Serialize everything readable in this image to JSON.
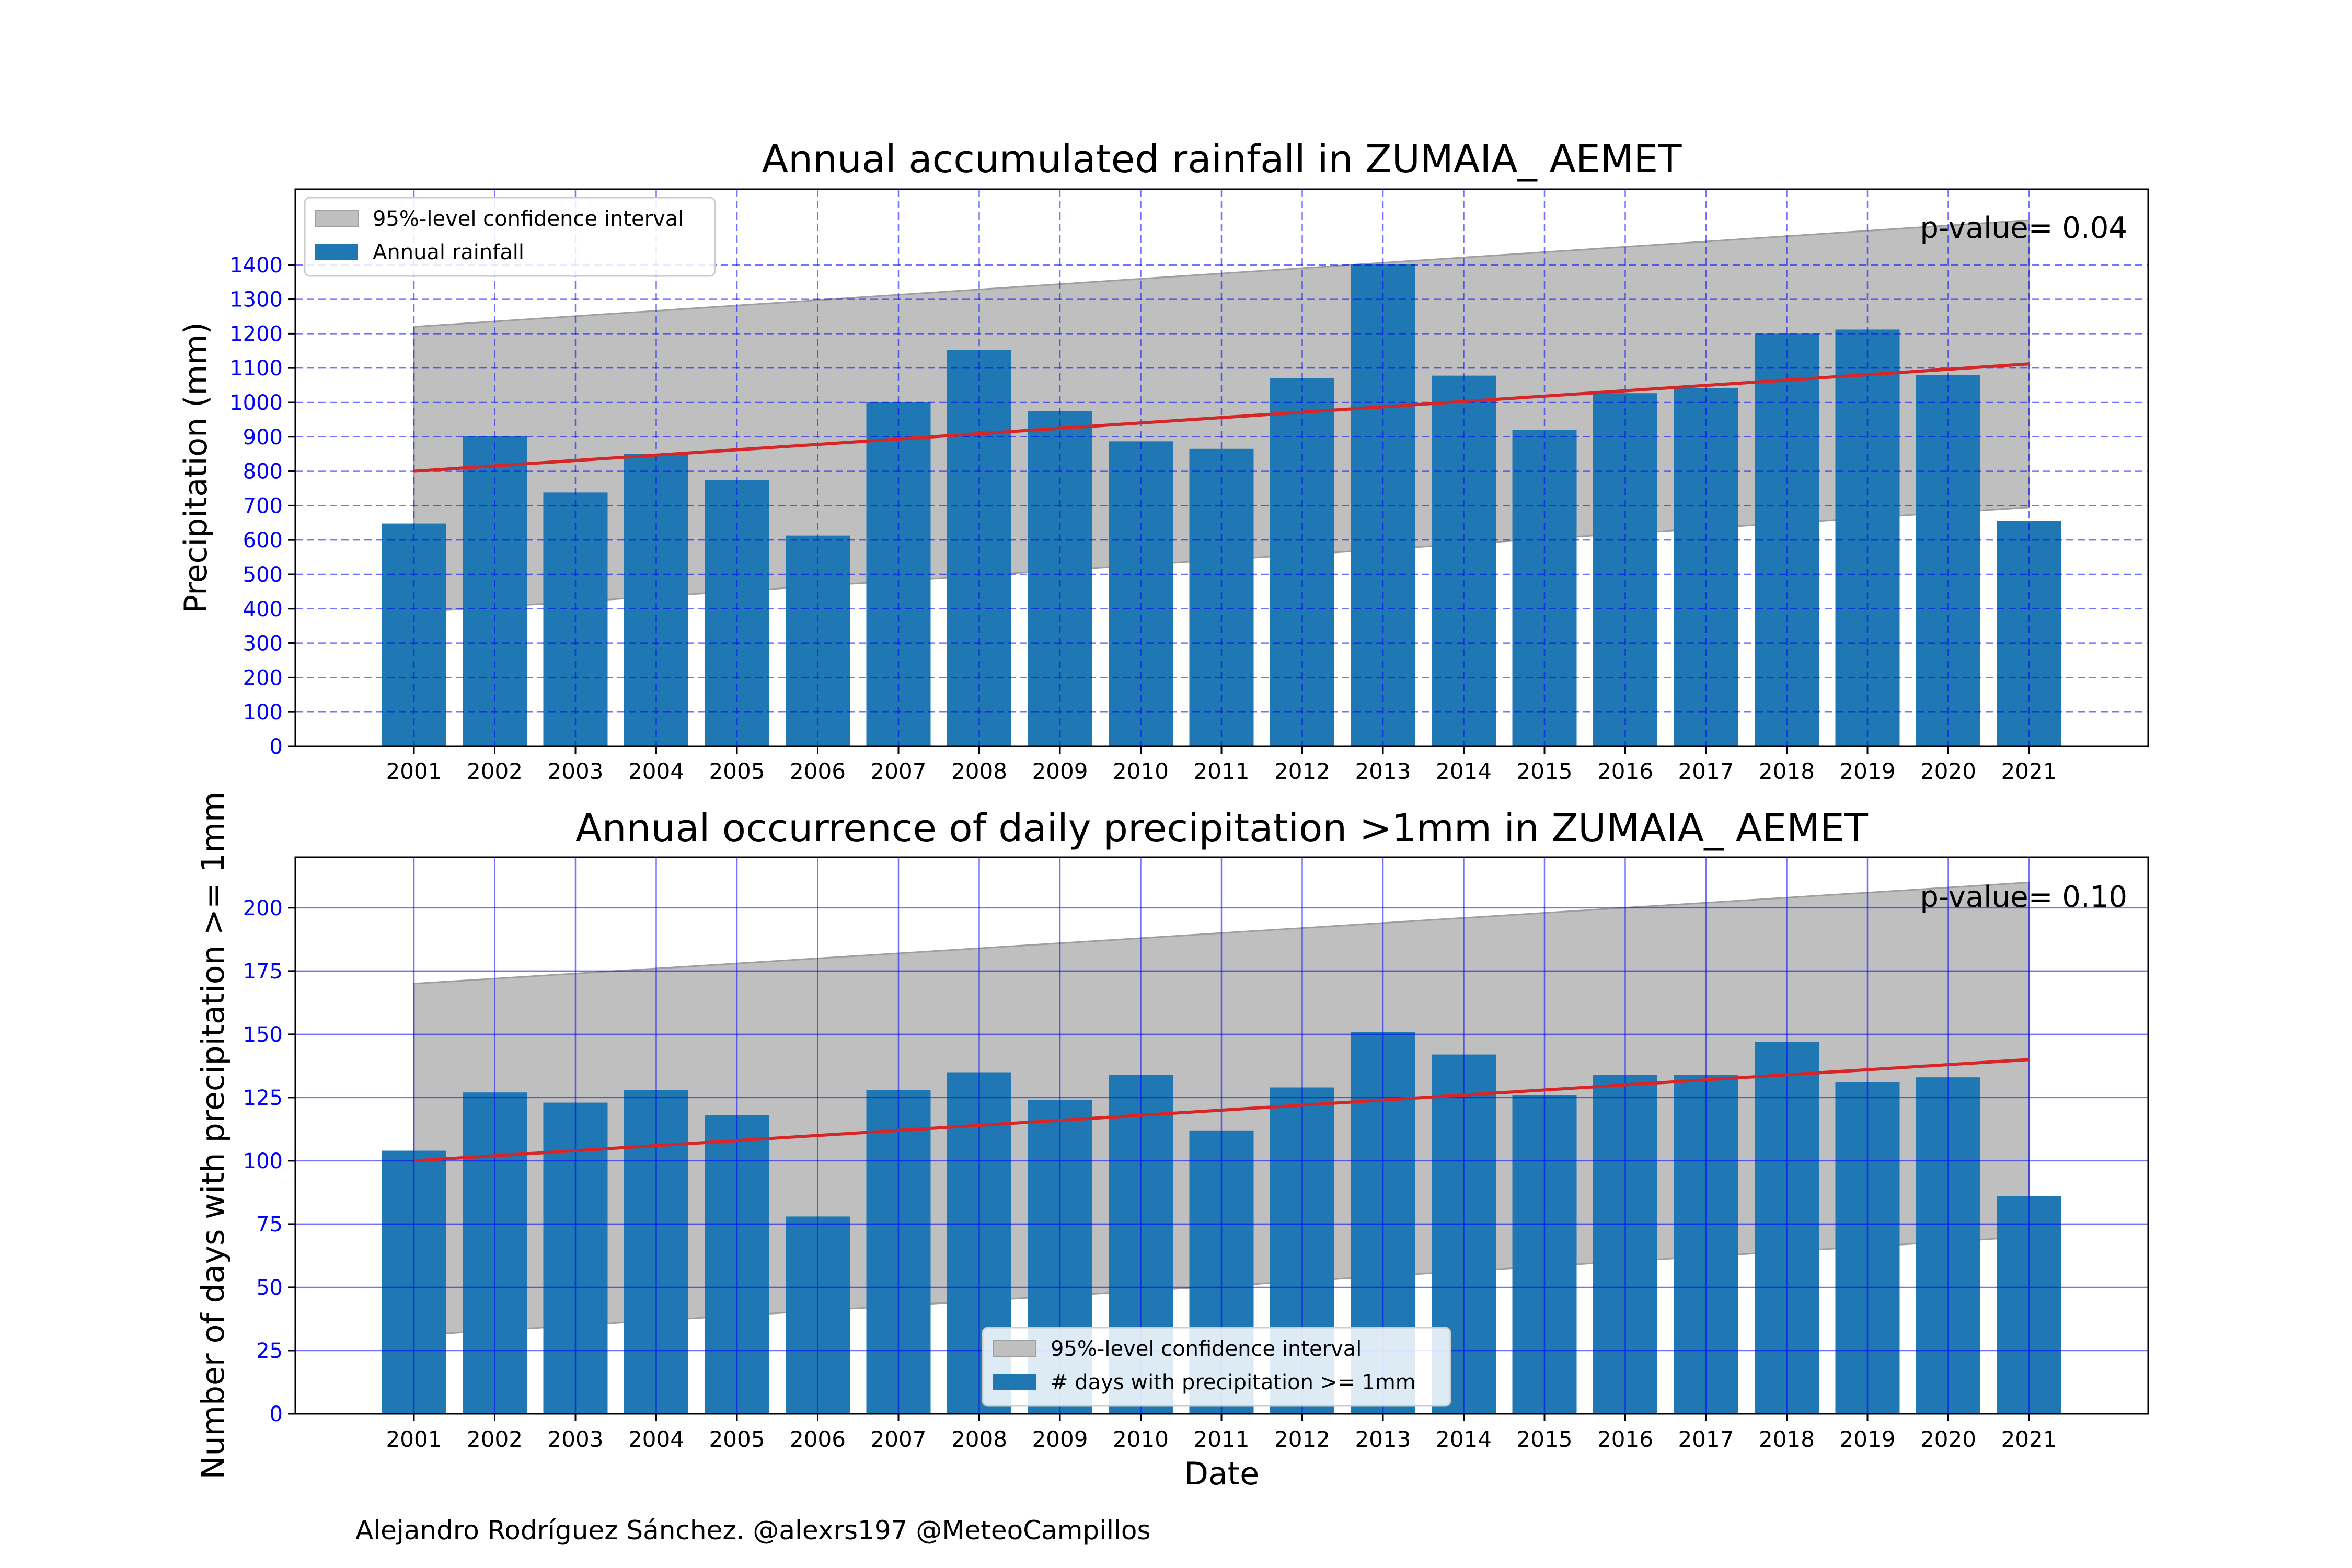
{
  "credit": "Alejandro Rodríguez Sánchez. @alexrs197 @MeteoCampillos",
  "chart_data": [
    {
      "type": "bar",
      "title": "Annual accumulated rainfall in ZUMAIA_ AEMET",
      "ylabel": "Precipitation (mm)",
      "xlabel": "",
      "categories": [
        "2001",
        "2002",
        "2003",
        "2004",
        "2005",
        "2006",
        "2007",
        "2008",
        "2009",
        "2010",
        "2011",
        "2012",
        "2013",
        "2014",
        "2015",
        "2016",
        "2017",
        "2018",
        "2019",
        "2020",
        "2021"
      ],
      "series": [
        {
          "name": "Annual rainfall",
          "color": "#1f77b4",
          "values": [
            648,
            902,
            738,
            851,
            775,
            613,
            1001,
            1153,
            975,
            887,
            865,
            1070,
            1402,
            1078,
            920,
            1027,
            1042,
            1200,
            1212,
            1080,
            655
          ]
        }
      ],
      "trend": {
        "start": [
          2001,
          800
        ],
        "end": [
          2021,
          1112
        ],
        "color": "#d62728"
      },
      "confidence_interval": {
        "name": "95%-level confidence interval",
        "upper_start": 1220,
        "upper_end": 1530,
        "lower_start": 390,
        "lower_end": 695,
        "color": "#bfbfbf"
      },
      "p_value": "p-value= 0.04",
      "ylim": [
        0,
        1400
      ],
      "yticks": [
        0,
        100,
        200,
        300,
        400,
        500,
        600,
        700,
        800,
        900,
        1000,
        1100,
        1200,
        1300,
        1400
      ],
      "grid": "dashed",
      "legend": {
        "position": "top-left",
        "entries": [
          "95%-level confidence interval",
          "Annual rainfall"
        ]
      }
    },
    {
      "type": "bar",
      "title": "Annual occurrence of daily precipitation >1mm in ZUMAIA_ AEMET",
      "ylabel": "Number of days with precipitation >= 1mm",
      "xlabel": "Date",
      "categories": [
        "2001",
        "2002",
        "2003",
        "2004",
        "2005",
        "2006",
        "2007",
        "2008",
        "2009",
        "2010",
        "2011",
        "2012",
        "2013",
        "2014",
        "2015",
        "2016",
        "2017",
        "2018",
        "2019",
        "2020",
        "2021"
      ],
      "series": [
        {
          "name": "# days with precipitation >= 1mm",
          "color": "#1f77b4",
          "values": [
            104,
            127,
            123,
            128,
            118,
            78,
            128,
            135,
            124,
            134,
            112,
            129,
            151,
            142,
            126,
            134,
            134,
            147,
            131,
            133,
            86
          ]
        }
      ],
      "trend": {
        "start": [
          2001,
          100
        ],
        "end": [
          2021,
          140
        ],
        "color": "#d62728"
      },
      "confidence_interval": {
        "name": "95%-level confidence interval",
        "upper_start": 170,
        "upper_end": 210,
        "lower_start": 31,
        "lower_end": 70,
        "color": "#bfbfbf"
      },
      "p_value": "p-value= 0.10",
      "ylim": [
        0,
        220
      ],
      "yticks": [
        0,
        25,
        50,
        75,
        100,
        125,
        150,
        175,
        200
      ],
      "grid": "solid",
      "legend": {
        "position": "bottom-center",
        "entries": [
          "95%-level confidence interval",
          "# days with precipitation >= 1mm"
        ]
      }
    }
  ]
}
